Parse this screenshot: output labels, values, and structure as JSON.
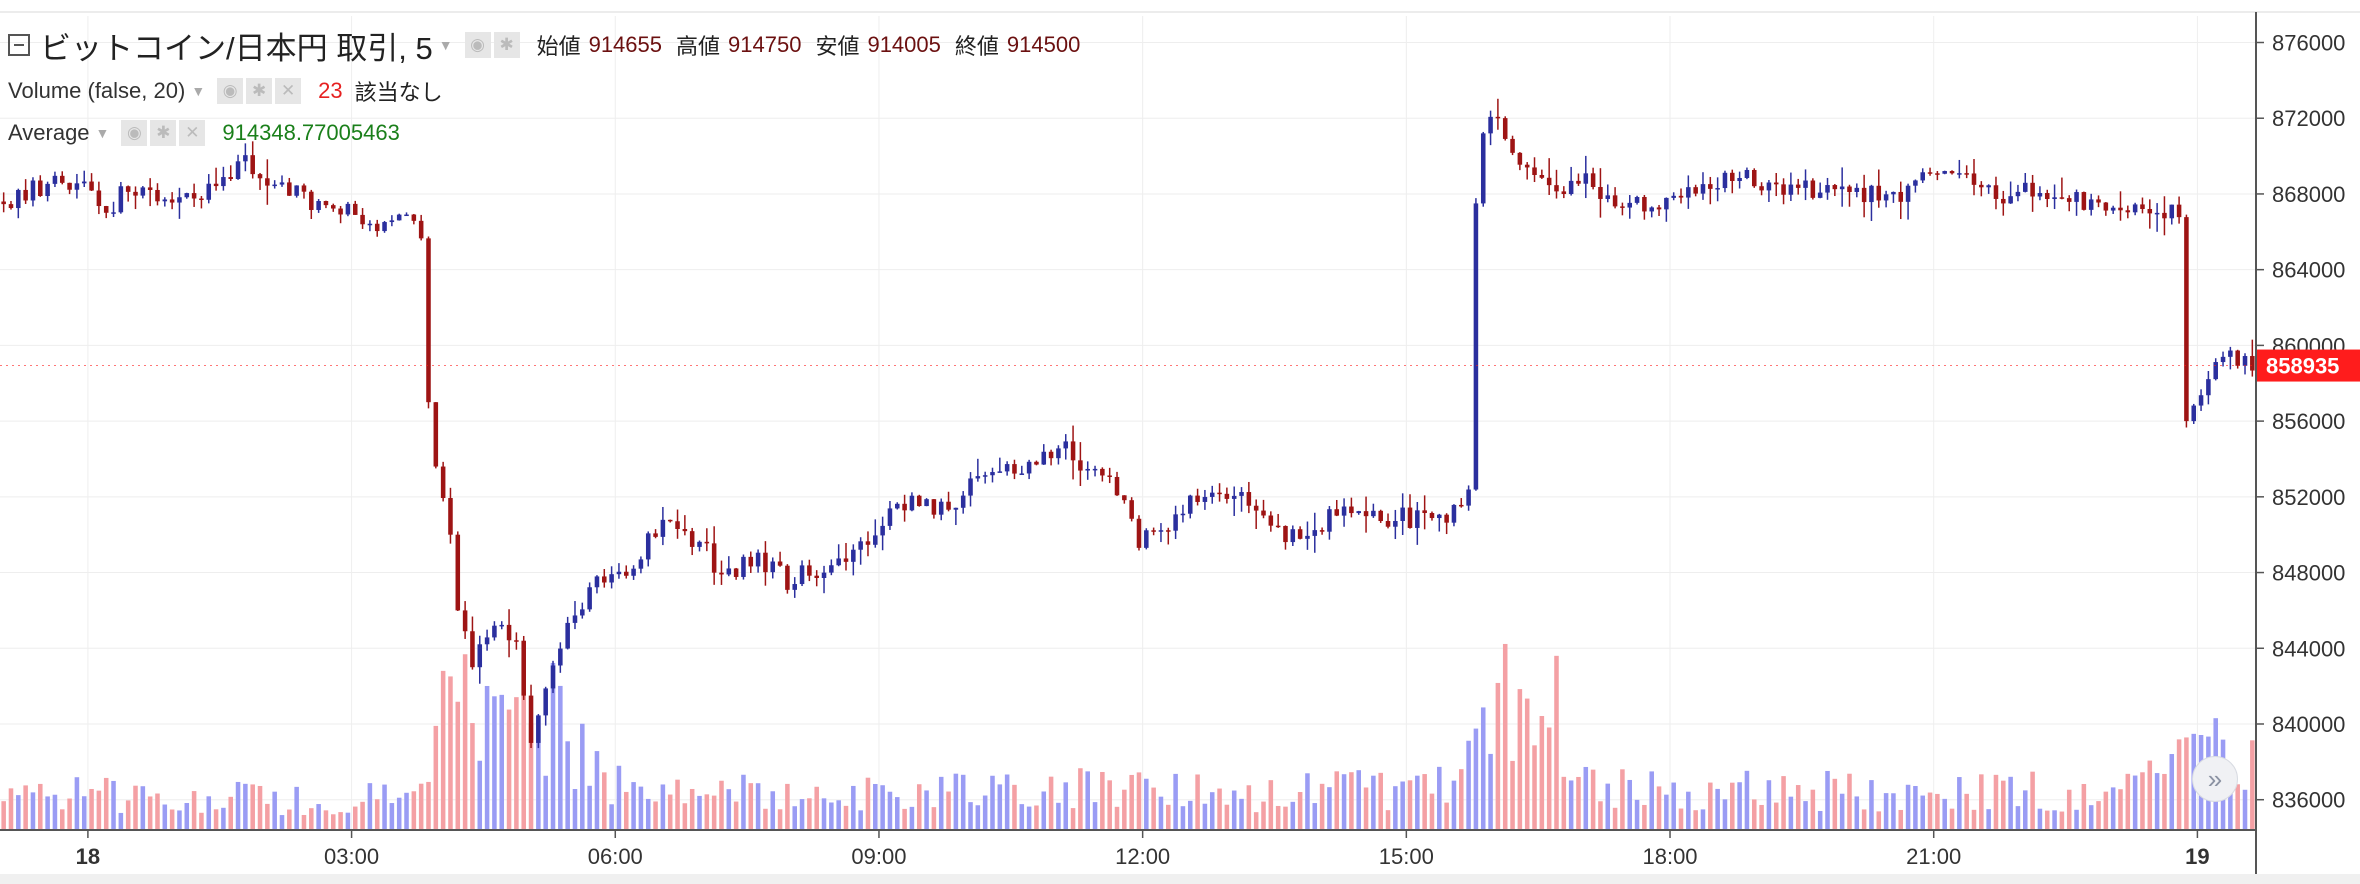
{
  "legend": {
    "title": "ビットコイン/日本円 取引, 5",
    "ohlc": [
      {
        "label": "始値",
        "value": "914655"
      },
      {
        "label": "高値",
        "value": "914750"
      },
      {
        "label": "安値",
        "value": "914005"
      },
      {
        "label": "終値",
        "value": "914500"
      }
    ],
    "volume_label": "Volume (false, 20)",
    "volume_value": "23",
    "volume_status": "該当なし",
    "average_label": "Average",
    "average_value": "914348.77005463"
  },
  "icons": {
    "collapse": "collapse-icon",
    "caret": "chevron-down-icon",
    "visibility": "eye-icon",
    "settings": "gear-icon",
    "remove": "close-icon",
    "scroll": "scroll-right-icon"
  },
  "colors": {
    "up": "#2b2f9e",
    "down": "#9e1414",
    "volume_up": "#9a9cf4",
    "volume_down": "#f4a0a4",
    "last_price_badge": "#ff1c1c",
    "grid": "#eeeeee"
  },
  "chart_data": {
    "type": "candlestick",
    "symbol": "ビットコイン/日本円",
    "interval_minutes": 5,
    "ylim": [
      834400,
      877400
    ],
    "y_ticks": [
      "876000",
      "872000",
      "868000",
      "864000",
      "860000",
      "856000",
      "852000",
      "848000",
      "844000",
      "840000",
      "836000"
    ],
    "y_tick_values": [
      876000,
      872000,
      868000,
      864000,
      860000,
      856000,
      852000,
      848000,
      844000,
      840000,
      836000
    ],
    "x_ticks": [
      {
        "label": "18",
        "time": "18 00:00",
        "bold": true
      },
      {
        "label": "03:00",
        "time": "18 03:00",
        "bold": false
      },
      {
        "label": "06:00",
        "time": "18 06:00",
        "bold": false
      },
      {
        "label": "09:00",
        "time": "18 09:00",
        "bold": false
      },
      {
        "label": "12:00",
        "time": "18 12:00",
        "bold": false
      },
      {
        "label": "15:00",
        "time": "18 15:00",
        "bold": false
      },
      {
        "label": "18:00",
        "time": "18 18:00",
        "bold": false
      },
      {
        "label": "21:00",
        "time": "18 21:00",
        "bold": false
      },
      {
        "label": "19",
        "time": "19 00:00",
        "bold": true
      }
    ],
    "x_range": [
      "17 23:00",
      "19 00:40"
    ],
    "last_price": "858935",
    "last_price_value": 858935,
    "price_path": [
      [
        "17 23:00",
        867600
      ],
      [
        "17 23:20",
        868000
      ],
      [
        "17 23:45",
        869000
      ],
      [
        "18 00:00",
        868200
      ],
      [
        "18 00:15",
        867000
      ],
      [
        "18 00:30",
        868300
      ],
      [
        "18 01:00",
        867300
      ],
      [
        "18 01:30",
        868300
      ],
      [
        "18 01:50",
        869600
      ],
      [
        "18 02:10",
        868500
      ],
      [
        "18 02:40",
        867300
      ],
      [
        "18 03:00",
        867000
      ],
      [
        "18 03:20",
        866300
      ],
      [
        "18 03:45",
        867100
      ],
      [
        "18 03:50",
        866000
      ],
      [
        "18 03:55",
        857000
      ],
      [
        "18 04:00",
        853600
      ],
      [
        "18 04:10",
        850000
      ],
      [
        "18 04:15",
        846000
      ],
      [
        "18 04:25",
        843000
      ],
      [
        "18 04:40",
        845500
      ],
      [
        "18 04:55",
        844000
      ],
      [
        "18 05:05",
        839000
      ],
      [
        "18 05:20",
        843500
      ],
      [
        "18 05:35",
        845800
      ],
      [
        "18 05:50",
        848000
      ],
      [
        "18 06:00",
        847500
      ],
      [
        "18 06:10",
        848000
      ],
      [
        "18 06:25",
        849800
      ],
      [
        "18 06:40",
        850600
      ],
      [
        "18 07:00",
        849500
      ],
      [
        "18 07:15",
        848000
      ],
      [
        "18 07:40",
        848500
      ],
      [
        "18 08:00",
        847600
      ],
      [
        "18 08:20",
        848200
      ],
      [
        "18 08:45",
        849000
      ],
      [
        "18 09:00",
        850400
      ],
      [
        "18 09:20",
        851600
      ],
      [
        "18 09:45",
        851200
      ],
      [
        "18 10:00",
        852200
      ],
      [
        "18 10:20",
        853200
      ],
      [
        "18 10:40",
        853600
      ],
      [
        "18 11:00",
        854300
      ],
      [
        "18 11:10",
        854900
      ],
      [
        "18 11:25",
        853400
      ],
      [
        "18 11:45",
        852300
      ],
      [
        "18 12:00",
        849800
      ],
      [
        "18 12:20",
        850500
      ],
      [
        "18 12:40",
        852200
      ],
      [
        "18 13:00",
        852400
      ],
      [
        "18 13:20",
        851300
      ],
      [
        "18 13:40",
        850000
      ],
      [
        "18 14:00",
        850300
      ],
      [
        "18 14:20",
        851300
      ],
      [
        "18 14:40",
        850900
      ],
      [
        "18 15:00",
        851000
      ],
      [
        "18 15:15",
        850700
      ],
      [
        "18 15:30",
        851100
      ],
      [
        "18 15:40",
        851300
      ],
      [
        "18 15:45",
        852300
      ],
      [
        "18 15:50",
        867500
      ],
      [
        "18 15:55",
        871200
      ],
      [
        "18 16:00",
        872000
      ],
      [
        "18 16:10",
        871400
      ],
      [
        "18 16:25",
        869300
      ],
      [
        "18 16:45",
        867600
      ],
      [
        "18 17:05",
        868800
      ],
      [
        "18 17:30",
        867500
      ],
      [
        "18 17:55",
        867300
      ],
      [
        "18 18:20",
        868000
      ],
      [
        "18 18:45",
        869100
      ],
      [
        "18 19:10",
        868400
      ],
      [
        "18 19:40",
        868300
      ],
      [
        "18 20:10",
        868000
      ],
      [
        "18 20:30",
        867900
      ],
      [
        "18 20:50",
        868300
      ],
      [
        "18 21:10",
        869500
      ],
      [
        "18 21:30",
        868500
      ],
      [
        "18 21:50",
        867900
      ],
      [
        "18 22:15",
        868400
      ],
      [
        "18 22:40",
        867600
      ],
      [
        "18 23:00",
        867500
      ],
      [
        "18 23:25",
        867500
      ],
      [
        "18 23:50",
        866900
      ],
      [
        "18 23:55",
        856000
      ],
      [
        "19 00:05",
        857200
      ],
      [
        "19 00:15",
        858600
      ],
      [
        "19 00:25",
        859300
      ],
      [
        "19 00:35",
        858935
      ]
    ],
    "volume_profile": [
      [
        "17 23:00",
        4.5
      ],
      [
        "18 00:00",
        4.5
      ],
      [
        "18 01:00",
        4.2
      ],
      [
        "18 02:00",
        4.2
      ],
      [
        "18 03:00",
        4.0
      ],
      [
        "18 03:50",
        6.0
      ],
      [
        "18 04:00",
        22
      ],
      [
        "18 04:30",
        13
      ],
      [
        "18 05:00",
        16
      ],
      [
        "18 05:30",
        11
      ],
      [
        "18 06:00",
        5.5
      ],
      [
        "18 07:00",
        5.0
      ],
      [
        "18 08:00",
        4.8
      ],
      [
        "18 09:00",
        5.0
      ],
      [
        "18 10:00",
        5.0
      ],
      [
        "18 11:00",
        5.5
      ],
      [
        "18 12:00",
        5.0
      ],
      [
        "18 13:00",
        4.8
      ],
      [
        "18 14:00",
        5.0
      ],
      [
        "18 15:00",
        5.2
      ],
      [
        "18 15:40",
        9.0
      ],
      [
        "18 16:00",
        18
      ],
      [
        "18 16:30",
        12
      ],
      [
        "18 17:00",
        6.0
      ],
      [
        "18 18:00",
        5.0
      ],
      [
        "18 19:00",
        5.0
      ],
      [
        "18 20:00",
        5.0
      ],
      [
        "18 21:00",
        5.0
      ],
      [
        "18 22:00",
        5.0
      ],
      [
        "18 23:00",
        5.0
      ],
      [
        "18 23:50",
        9.0
      ],
      [
        "19 00:00",
        14
      ],
      [
        "19 00:30",
        8.0
      ]
    ],
    "volume_peaks": [
      [
        "18 04:00",
        20.1
      ],
      [
        "18 04:05",
        19.4
      ],
      [
        "18 04:10",
        16.2
      ],
      [
        "18 05:15",
        21.1
      ],
      [
        "18 05:20",
        18.2
      ],
      [
        "18 16:05",
        23.5
      ],
      [
        "18 16:15",
        17.8
      ],
      [
        "18 16:20",
        16.6
      ],
      [
        "18 16:40",
        22.0
      ],
      [
        "19 00:00",
        12.0
      ],
      [
        "19 00:05",
        11.8
      ]
    ],
    "volume_max": 24
  }
}
